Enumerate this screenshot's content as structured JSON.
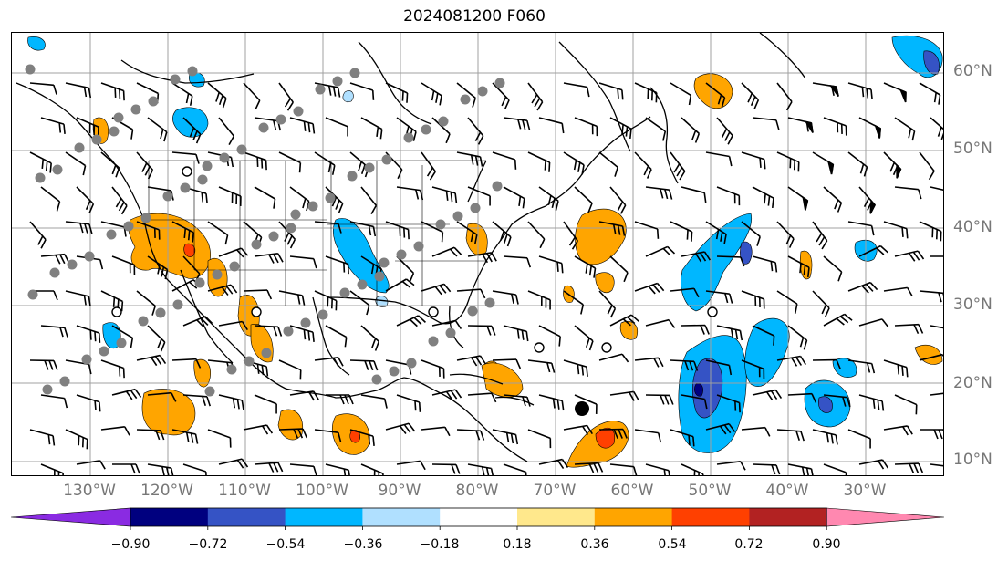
{
  "title": "2024081200 F060",
  "lat_labels": [
    "60°N",
    "50°N",
    "40°N",
    "30°N",
    "20°N",
    "10°N"
  ],
  "lon_labels": [
    "130°W",
    "120°W",
    "110°W",
    "100°W",
    "90°W",
    "80°W",
    "70°W",
    "60°W",
    "50°W",
    "40°W",
    "30°W"
  ],
  "colorbar": {
    "ticks": [
      "−0.90",
      "−0.72",
      "−0.54",
      "−0.36",
      "−0.18",
      "0.18",
      "0.36",
      "0.54",
      "0.72",
      "0.90"
    ],
    "colors": [
      "#8a2be2",
      "#00007f",
      "#3553c5",
      "#00b7ff",
      "#b0e0ff",
      "#ffffff",
      "#ffe88c",
      "#ffa500",
      "#ff4000",
      "#b22222",
      "#ff88b0"
    ]
  },
  "map": {
    "graticule_color": "#a0a0a0",
    "coast_color": "#000000",
    "station_color": "#808080"
  }
}
